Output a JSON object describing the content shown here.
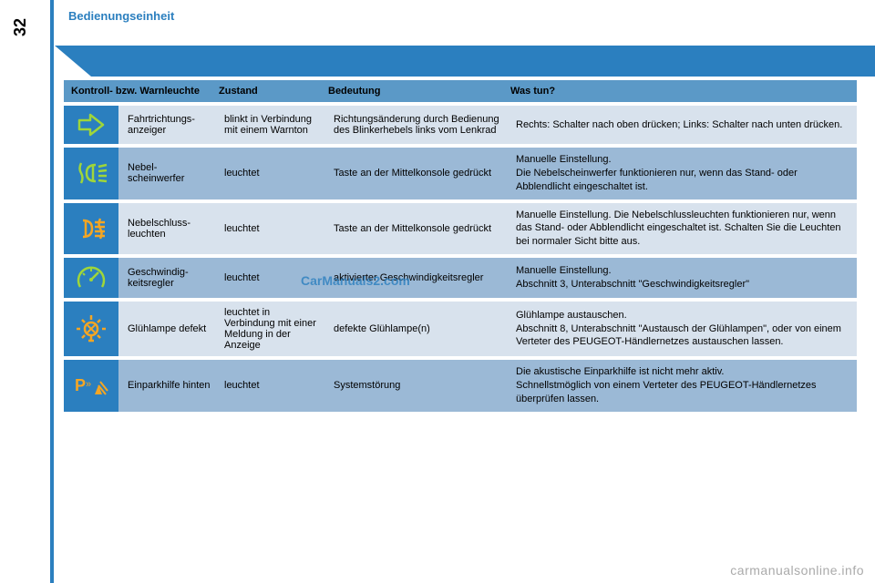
{
  "page": {
    "number": "32",
    "section_title": "Bedienungseinheit",
    "watermark": "CarManuals2.com",
    "footer": "carmanualsonline.info"
  },
  "table": {
    "headers": {
      "indicator": "Kontroll- bzw. Warnleuchte",
      "state": "Zustand",
      "meaning": "Bedeutung",
      "action": "Was tun?"
    },
    "rows": [
      {
        "shade": "light",
        "icon": "turn-signal",
        "name": "Fahrtrichtungs-anzeiger",
        "state": "blinkt in Verbindung mit einem Warnton",
        "meaning": "Richtungsänderung durch Bedienung des Blinkerhebels links vom Lenkrad",
        "action": "Rechts: Schalter nach oben drücken; Links: Schalter nach unten drücken."
      },
      {
        "shade": "dark",
        "icon": "fog-front",
        "name": "Nebel-scheinwerfer",
        "state": "leuchtet",
        "meaning": "Taste an der Mittelkonsole gedrückt",
        "action": "Manuelle Einstellung.\nDie Nebelscheinwerfer funktionieren nur, wenn das Stand- oder Abblendlicht eingeschaltet ist."
      },
      {
        "shade": "light",
        "icon": "fog-rear",
        "name": "Nebelschluss-leuchten",
        "state": "leuchtet",
        "meaning": "Taste an der Mittelkonsole gedrückt",
        "action": "Manuelle Einstellung. Die Nebelschlussleuchten funktionieren nur, wenn das Stand- oder Abblendlicht eingeschaltet ist. Schalten Sie die Leuchten bei normaler Sicht bitte aus."
      },
      {
        "shade": "dark",
        "icon": "cruise",
        "name": "Geschwindig-keitsregler",
        "state": "leuchtet",
        "meaning": "aktivierter Geschwindigkeitsregler",
        "action": "Manuelle Einstellung.\nAbschnitt 3, Unterabschnitt \"Geschwindigkeitsregler\""
      },
      {
        "shade": "light",
        "icon": "bulb",
        "name": "Glühlampe defekt",
        "state": "leuchtet in Verbindung mit einer Meldung in der Anzeige",
        "meaning": "defekte Glühlampe(n)",
        "action": "Glühlampe austauschen.\nAbschnitt 8, Unterabschnitt \"Austausch der Glühlampen\", oder von einem Verteter des PEUGEOT-Händlernetzes austauschen lassen."
      },
      {
        "shade": "dark",
        "icon": "park-assist",
        "name": "Einparkhilfe hinten",
        "state": "leuchtet",
        "meaning": "Systemstörung",
        "action": "Die akustische Einparkhilfe ist nicht mehr aktiv.\nSchnellstmöglich von einem Verteter des PEUGEOT-Händlernetzes überprüfen lassen."
      }
    ]
  },
  "colors": {
    "brand_blue": "#2b7fbf",
    "header_blue": "#5b99c7",
    "row_light": "#d8e2ed",
    "row_dark": "#9bb9d6",
    "icon_green": "#9fd63a",
    "icon_orange": "#f5a623"
  }
}
